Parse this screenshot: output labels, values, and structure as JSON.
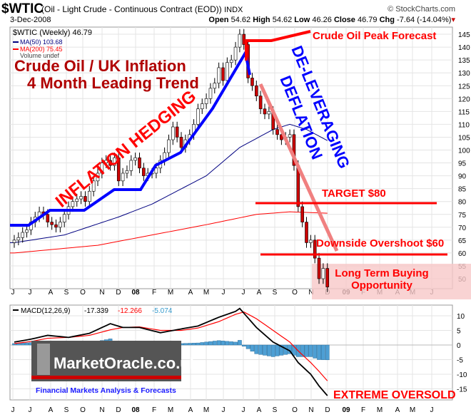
{
  "header": {
    "symbol": "$WTIC",
    "description": "(Oil - Light Crude - Continuous Contract (EOD))",
    "exchange": "INDX",
    "source": "© StockCharts.com",
    "date": "3-Dec-2008",
    "open_label": "Open",
    "open": "54.62",
    "high_label": "High",
    "high": "54.62",
    "low_label": "Low",
    "low": "46.26",
    "close_label": "Close",
    "close": "46.79",
    "chg_label": "Chg",
    "chg": "-7.64 (-14.04%)"
  },
  "legend": {
    "price": "$WTIC (Weekly) 46.79",
    "ma50": "MA(50) 103.68",
    "ma200": "MA(200) 75.45",
    "volume": "Volume undef"
  },
  "annotations": {
    "title1": "Crude Oil / UK Inflation",
    "title2": "4 Month Leading Trend",
    "hedging": "INFLATION HEDGING",
    "deleveraging1": "DE-LEVERAGING",
    "deleveraging2": "DEFLATION",
    "peak": "Crude Oil Peak Forecast",
    "target": "TARGET $80",
    "overshoot": "Downside Overshoot $60",
    "buying1": "Long Term Buying",
    "buying2": "Opportunity",
    "oversold": "EXTREME OVERSOLD"
  },
  "macd_legend": {
    "label": "MACD(12,26,9)",
    "macd": "-17.339",
    "signal": "-12.266",
    "hist": "-5.074"
  },
  "logo": {
    "name": "MarketOracle.co.uk",
    "tagline": "Financial Markets Analysis & Forecasts"
  },
  "colors": {
    "up": "#ffffff",
    "down": "#cc0000",
    "ma50": "#000080",
    "ma200": "#ff0000",
    "hist": "#4d9fd4",
    "annot_red": "#ff0000",
    "annot_blue": "#0000ff",
    "title_red": "#b00000"
  },
  "chart_data": {
    "type": "candlestick",
    "x_labels": [
      "J",
      "J",
      "A",
      "S",
      "O",
      "N",
      "D",
      "08",
      "F",
      "M",
      "A",
      "M",
      "J",
      "J",
      "A",
      "S",
      "O",
      "N",
      "D",
      "09",
      "F",
      "M",
      "A",
      "M",
      "J"
    ],
    "y_ticks": [
      50,
      55,
      60,
      65,
      70,
      75,
      80,
      85,
      90,
      95,
      100,
      105,
      110,
      115,
      120,
      125,
      130,
      135,
      140,
      145
    ],
    "ylim": [
      45,
      148
    ],
    "weekly_close": [
      65,
      66,
      68,
      69,
      72,
      74,
      76,
      75,
      72,
      71,
      70,
      72,
      75,
      78,
      80,
      81,
      82,
      80,
      84,
      88,
      91,
      95,
      96,
      94,
      97,
      88,
      91,
      92,
      96,
      97,
      93,
      90,
      91,
      91,
      93,
      96,
      99,
      104,
      109,
      105,
      101,
      104,
      106,
      110,
      116,
      118,
      120,
      124,
      126,
      132,
      127,
      134,
      135,
      140,
      145,
      141,
      128,
      125,
      121,
      116,
      114,
      115,
      108,
      106,
      104,
      105,
      106,
      94,
      78,
      72,
      64,
      65,
      58,
      50,
      54,
      46.79
    ],
    "ma50_keyframes": [
      [
        0,
        64
      ],
      [
        12,
        67
      ],
      [
        25,
        74
      ],
      [
        33,
        79
      ],
      [
        46,
        90
      ],
      [
        54,
        101
      ],
      [
        62,
        108
      ],
      [
        66,
        110
      ],
      [
        70,
        108
      ],
      [
        75,
        103.68
      ]
    ],
    "ma200_keyframes": [
      [
        0,
        60
      ],
      [
        20,
        63
      ],
      [
        33,
        67
      ],
      [
        46,
        71
      ],
      [
        58,
        75
      ],
      [
        66,
        76
      ],
      [
        75,
        75.45
      ]
    ],
    "macd": {
      "y_ticks": [
        10,
        5,
        0,
        -5,
        -10,
        -15
      ],
      "ylim": [
        -18,
        14
      ],
      "macd_keyframes": [
        [
          0,
          1
        ],
        [
          4,
          2
        ],
        [
          8,
          3.3
        ],
        [
          13,
          2.6
        ],
        [
          18,
          4
        ],
        [
          23,
          7.3
        ],
        [
          26,
          6
        ],
        [
          30,
          6
        ],
        [
          35,
          4.2
        ],
        [
          40,
          5.5
        ],
        [
          44,
          6.5
        ],
        [
          49,
          9.5
        ],
        [
          53,
          11.5
        ],
        [
          54,
          12.5
        ],
        [
          58,
          6
        ],
        [
          62,
          1
        ],
        [
          66,
          -2
        ],
        [
          68,
          -6
        ],
        [
          71,
          -10
        ],
        [
          73,
          -14
        ],
        [
          75,
          -17.339
        ]
      ],
      "signal_keyframes": [
        [
          0,
          0.5
        ],
        [
          4,
          1.2
        ],
        [
          8,
          2.3
        ],
        [
          13,
          2.6
        ],
        [
          18,
          3.3
        ],
        [
          23,
          5.2
        ],
        [
          26,
          6
        ],
        [
          30,
          6.2
        ],
        [
          35,
          5
        ],
        [
          40,
          5
        ],
        [
          44,
          5.8
        ],
        [
          49,
          8
        ],
        [
          53,
          10.5
        ],
        [
          55,
          11.3
        ],
        [
          58,
          9
        ],
        [
          62,
          5
        ],
        [
          66,
          1
        ],
        [
          68,
          -2
        ],
        [
          71,
          -6
        ],
        [
          73,
          -9
        ],
        [
          75,
          -12.266
        ]
      ]
    }
  }
}
